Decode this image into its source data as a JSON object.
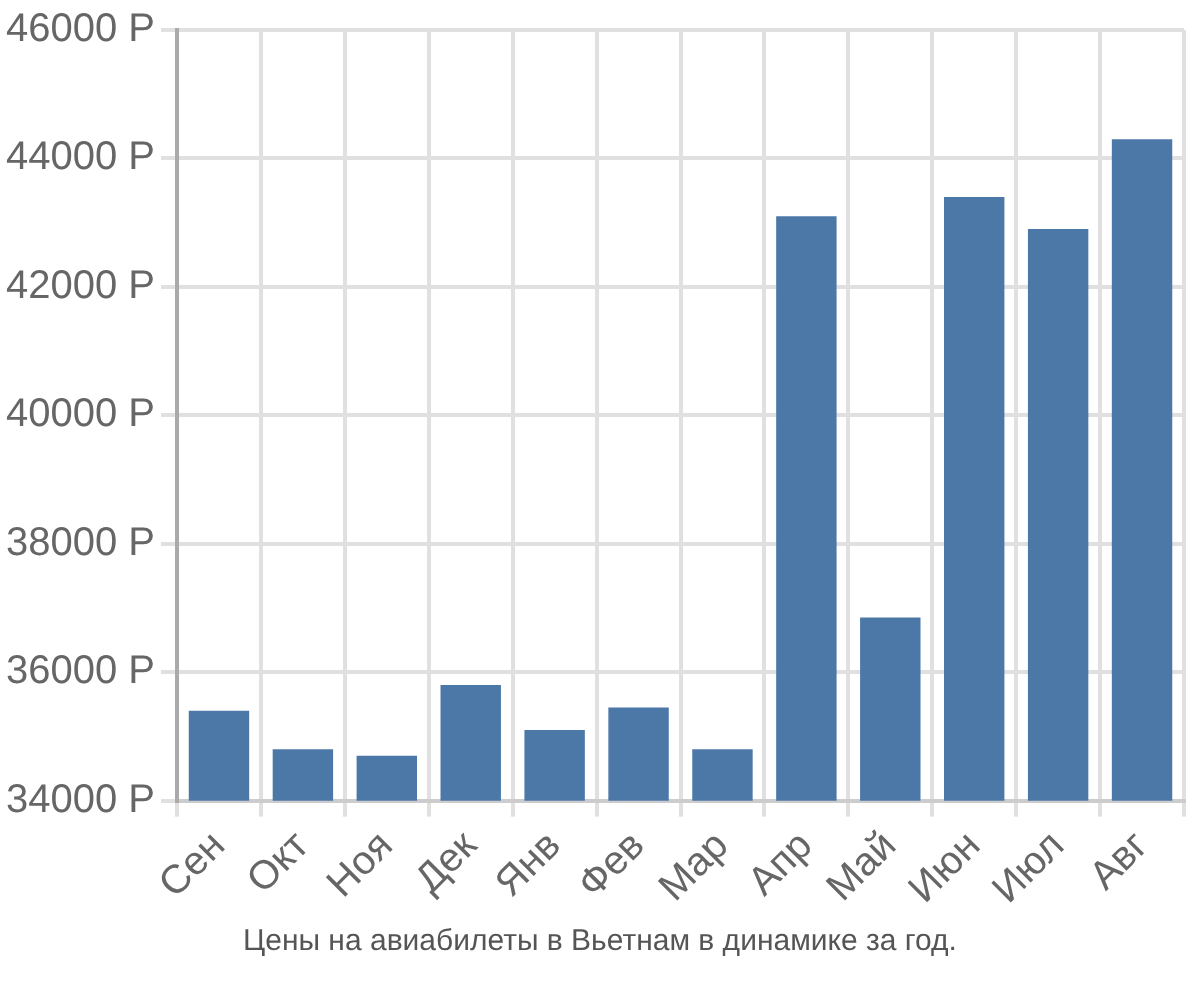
{
  "chart_data": {
    "type": "bar",
    "categories": [
      "Сен",
      "Окт",
      "Ноя",
      "Дек",
      "Янв",
      "Фев",
      "Мар",
      "Апр",
      "Май",
      "Июн",
      "Июл",
      "Авг"
    ],
    "values": [
      35400,
      34800,
      34700,
      35800,
      35100,
      35450,
      34800,
      43100,
      36850,
      43400,
      42900,
      44300
    ],
    "color": "#4c78a8",
    "ylim": [
      34000,
      46000
    ],
    "yticks": [
      {
        "value": 34000,
        "label": "34000 Р"
      },
      {
        "value": 36000,
        "label": "36000 Р"
      },
      {
        "value": 38000,
        "label": "38000 Р"
      },
      {
        "value": 40000,
        "label": "40000 Р"
      },
      {
        "value": 42000,
        "label": "42000 Р"
      },
      {
        "value": 44000,
        "label": "44000 Р"
      },
      {
        "value": 46000,
        "label": "46000 Р"
      }
    ],
    "grid": true,
    "legend": false,
    "annotations": [
      "Цены на авиабилеты в Вьетнам в динамике за год."
    ]
  }
}
